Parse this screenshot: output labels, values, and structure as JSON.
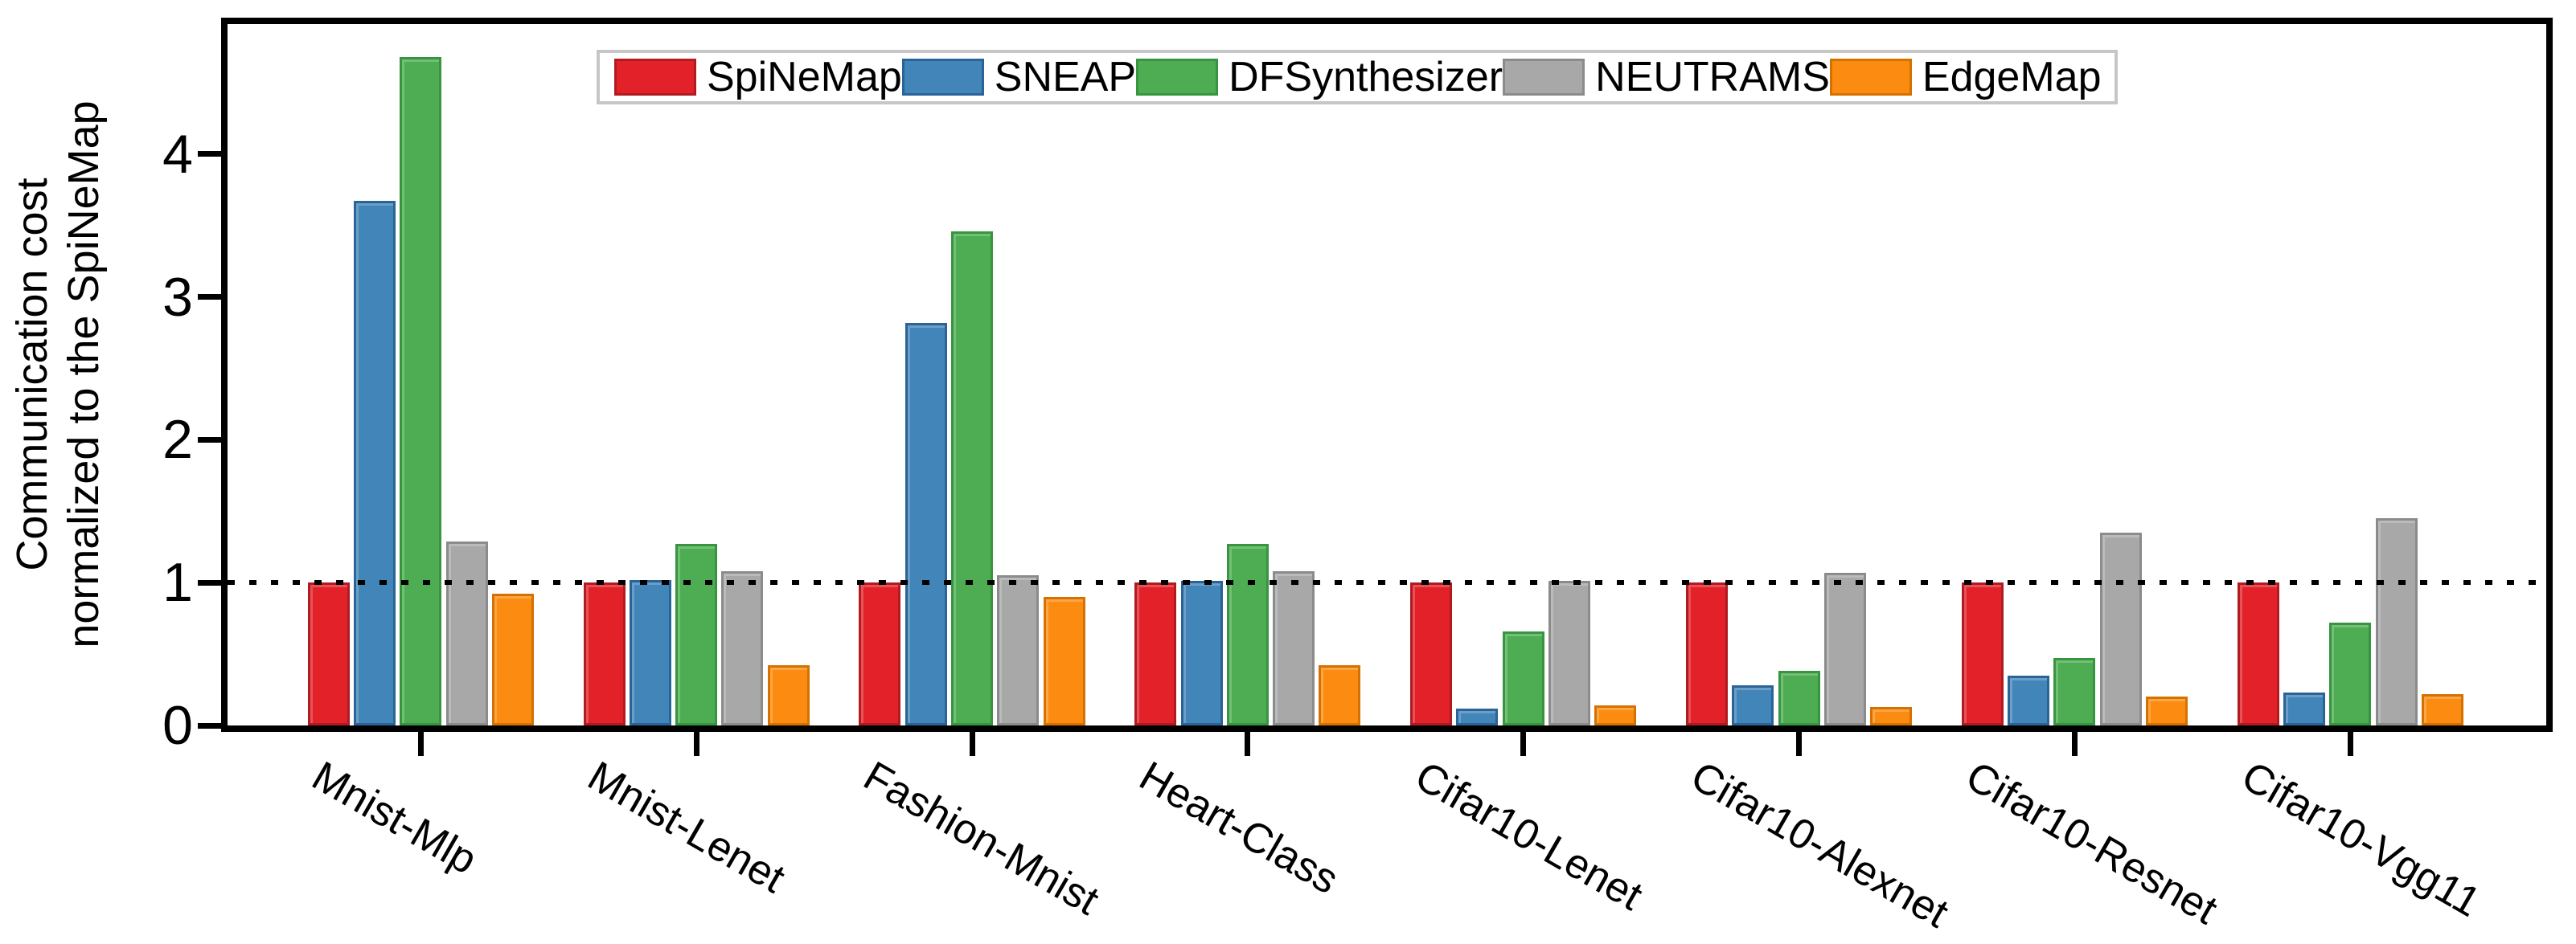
{
  "chart_data": {
    "type": "bar",
    "title": "",
    "ylabel_lines": [
      "Communication cost",
      "normalized to the SpiNeMap"
    ],
    "categories": [
      "Mnist-Mlp",
      "Mnist-Lenet",
      "Fashion-Mnist",
      "Heart-Class",
      "Cifar10-Lenet",
      "Cifar10-Alexnet",
      "Cifar10-Resnet",
      "Cifar10-Vgg11"
    ],
    "series": [
      {
        "name": "SpiNeMap",
        "color": "#e22128",
        "border_color": "#b01b21",
        "values": [
          1.0,
          1.0,
          1.0,
          1.0,
          1.0,
          1.0,
          1.0,
          1.0
        ]
      },
      {
        "name": "SNEAP",
        "color": "#4285b8",
        "border_color": "#2a6398",
        "values": [
          3.67,
          1.02,
          2.82,
          1.01,
          0.12,
          0.28,
          0.35,
          0.23
        ]
      },
      {
        "name": "DFSynthesizer",
        "color": "#4ead52",
        "border_color": "#37943f",
        "values": [
          4.68,
          1.27,
          3.46,
          1.27,
          0.66,
          0.38,
          0.47,
          0.72
        ]
      },
      {
        "name": "NEUTRAMS",
        "color": "#a8a8a8",
        "border_color": "#8b8b8b",
        "values": [
          1.29,
          1.08,
          1.05,
          1.08,
          1.01,
          1.07,
          1.35,
          1.45
        ]
      },
      {
        "name": "EdgeMap",
        "color": "#fb8c11",
        "border_color": "#d57100",
        "values": [
          0.92,
          0.42,
          0.9,
          0.42,
          0.14,
          0.13,
          0.2,
          0.22
        ]
      }
    ],
    "y_ticks": [
      0,
      1,
      2,
      3,
      4
    ],
    "ylim": [
      0,
      4.91
    ],
    "reference_line": 1.0,
    "grid": false,
    "legend_position": "top-center",
    "axis_color": "#000000",
    "background_color": "#ffffff"
  }
}
